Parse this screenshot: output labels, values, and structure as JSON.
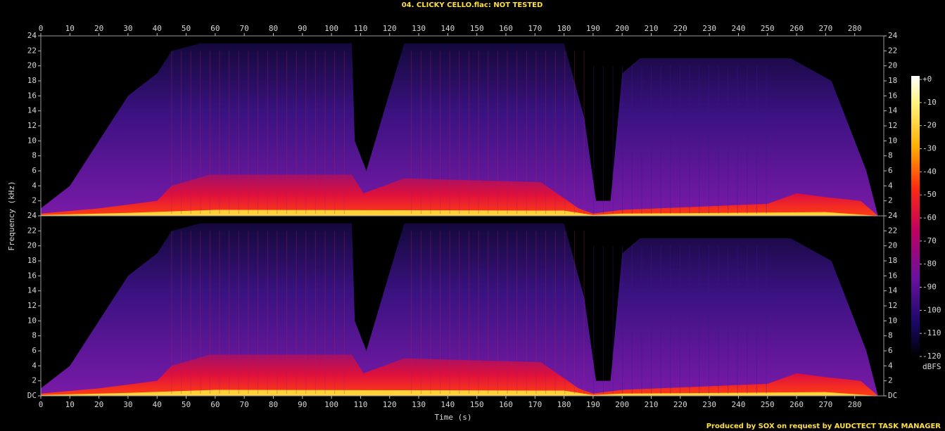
{
  "chart_data": {
    "type": "spectrogram",
    "title": "04. CLICKY CELLO.flac: NOT TESTED",
    "xlabel": "Time (s)",
    "ylabel": "Frequency (kHz)",
    "xlim": [
      0,
      290
    ],
    "xticks": [
      0,
      10,
      20,
      30,
      40,
      50,
      60,
      70,
      80,
      90,
      100,
      110,
      120,
      130,
      140,
      150,
      160,
      170,
      180,
      190,
      200,
      210,
      220,
      230,
      240,
      250,
      260,
      270,
      280
    ],
    "channels": [
      {
        "ylim": [
          0,
          24
        ],
        "yticks": [
          2,
          4,
          6,
          8,
          10,
          12,
          14,
          16,
          18,
          20,
          22,
          24
        ]
      },
      {
        "ylim": [
          0,
          24
        ],
        "yticks": [
          {
            "value": 0,
            "label": "DC"
          },
          2,
          4,
          6,
          8,
          10,
          12,
          14,
          16,
          18,
          20,
          22,
          24
        ]
      }
    ],
    "colorbar": {
      "label": "dBFS",
      "lim": [
        -120,
        0
      ],
      "ticks": [
        {
          "value": 0,
          "label": "+0"
        },
        -10,
        -20,
        -30,
        -40,
        -50,
        -60,
        -70,
        -80,
        -90,
        -100,
        -110,
        -120
      ]
    },
    "footer": "Produced by SOX on request by AUDCTECT TASK MANAGER"
  }
}
